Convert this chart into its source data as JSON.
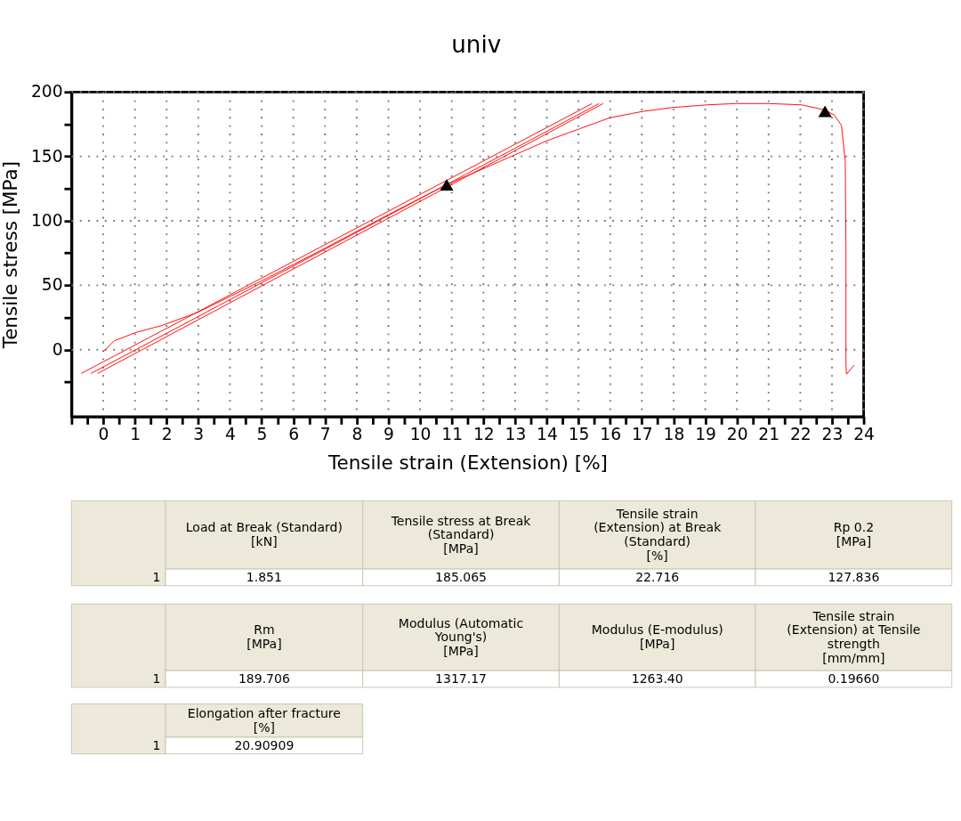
{
  "chart_data": {
    "type": "line",
    "title": "univ",
    "xlabel": "Tensile strain (Extension) [%]",
    "ylabel": "Tensile stress [MPa]",
    "xlim": [
      -1,
      24
    ],
    "xticks": [
      {
        "value": -1,
        "label": null
      },
      {
        "value": -0.5,
        "label": null
      },
      0,
      {
        "value": 0.5,
        "label": null
      },
      1,
      {
        "value": 1.5,
        "label": null
      },
      2,
      {
        "value": 2.5,
        "label": null
      },
      3,
      {
        "value": 3.5,
        "label": null
      },
      4,
      {
        "value": 4.5,
        "label": null
      },
      5,
      {
        "value": 5.5,
        "label": null
      },
      6,
      {
        "value": 6.5,
        "label": null
      },
      7,
      {
        "value": 7.5,
        "label": null
      },
      8,
      {
        "value": 8.5,
        "label": null
      },
      9,
      {
        "value": 9.5,
        "label": null
      },
      10,
      {
        "value": 10.5,
        "label": null
      },
      11,
      {
        "value": 11.5,
        "label": null
      },
      12,
      {
        "value": 12.5,
        "label": null
      },
      13,
      {
        "value": 13.5,
        "label": null
      },
      14,
      {
        "value": 14.5,
        "label": null
      },
      15,
      {
        "value": 15.5,
        "label": null
      },
      16,
      {
        "value": 16.5,
        "label": null
      },
      17,
      {
        "value": 17.5,
        "label": null
      },
      18,
      {
        "value": 18.5,
        "label": null
      },
      19,
      {
        "value": 19.5,
        "label": null
      },
      20,
      {
        "value": 20.5,
        "label": null
      },
      21,
      {
        "value": 21.5,
        "label": null
      },
      22,
      {
        "value": 22.5,
        "label": null
      },
      23,
      {
        "value": 23.5,
        "label": null
      },
      24
    ],
    "ylim": [
      -52,
      200
    ],
    "yticks": [
      {
        "value": -25,
        "label": null
      },
      0,
      {
        "value": 25,
        "label": null
      },
      50,
      {
        "value": 75,
        "label": null
      },
      100,
      {
        "value": 125,
        "label": null
      },
      150,
      {
        "value": 175,
        "label": null
      },
      200
    ],
    "grid": true,
    "series": [
      {
        "type": "line",
        "color": "#ff0000",
        "x": [
          0,
          0.35,
          1.02,
          1.84,
          2.97,
          5.03,
          7.05,
          8.99,
          10.84,
          13.99,
          15.04,
          15.99,
          17.05,
          17.99,
          19.06,
          19.97,
          21.03,
          22.04,
          22.78,
          23.08,
          23.3,
          23.42,
          23.44,
          23.44,
          23.46,
          23.7
        ],
        "values": [
          -1.7,
          6.9,
          13.3,
          18.7,
          28.8,
          53.8,
          79.4,
          104.7,
          128,
          162,
          171.5,
          180,
          185,
          188,
          190,
          191,
          191,
          190,
          186,
          182,
          174,
          146,
          81,
          -11,
          -19,
          -12
        ]
      },
      {
        "type": "line",
        "color": "#ff0000",
        "x": [
          -0.7,
          15.43
        ],
        "values": [
          -18.5,
          191
        ]
      },
      {
        "type": "line",
        "color": "#ff0000",
        "x": [
          -0.39,
          15.65
        ],
        "values": [
          -18.5,
          191
        ]
      },
      {
        "type": "line",
        "color": "#ff0000",
        "x": [
          -0.18,
          15.78
        ],
        "values": [
          -18.5,
          191
        ]
      },
      {
        "type": "scatter",
        "marker": "triangle",
        "color": "#000000",
        "x": [
          10.84,
          22.78
        ],
        "values": [
          128,
          185
        ]
      }
    ],
    "annotations": [
      "Load at Break (Standard)\n[kN]",
      "Tensile stress at Break\n(Standard)\n[MPa]",
      "Tensile strain\n(Extension) at Break\n(Standard)\n[%]",
      "Rp 0.2\n[MPa]",
      "1",
      "1.851",
      "185.065",
      "22.716",
      "127.836",
      "Rm\n[MPa]",
      "Modulus (Automatic\nYoung's)\n[MPa]",
      "Modulus (E-modulus)\n[MPa]",
      "Tensile strain\n(Extension) at Tensile\nstrength\n[mm/mm]",
      "1",
      "189.706",
      "1317.17",
      "1263.40",
      "0.19660",
      "Elongation after fracture\n[%]",
      "1",
      "20.90909"
    ]
  }
}
